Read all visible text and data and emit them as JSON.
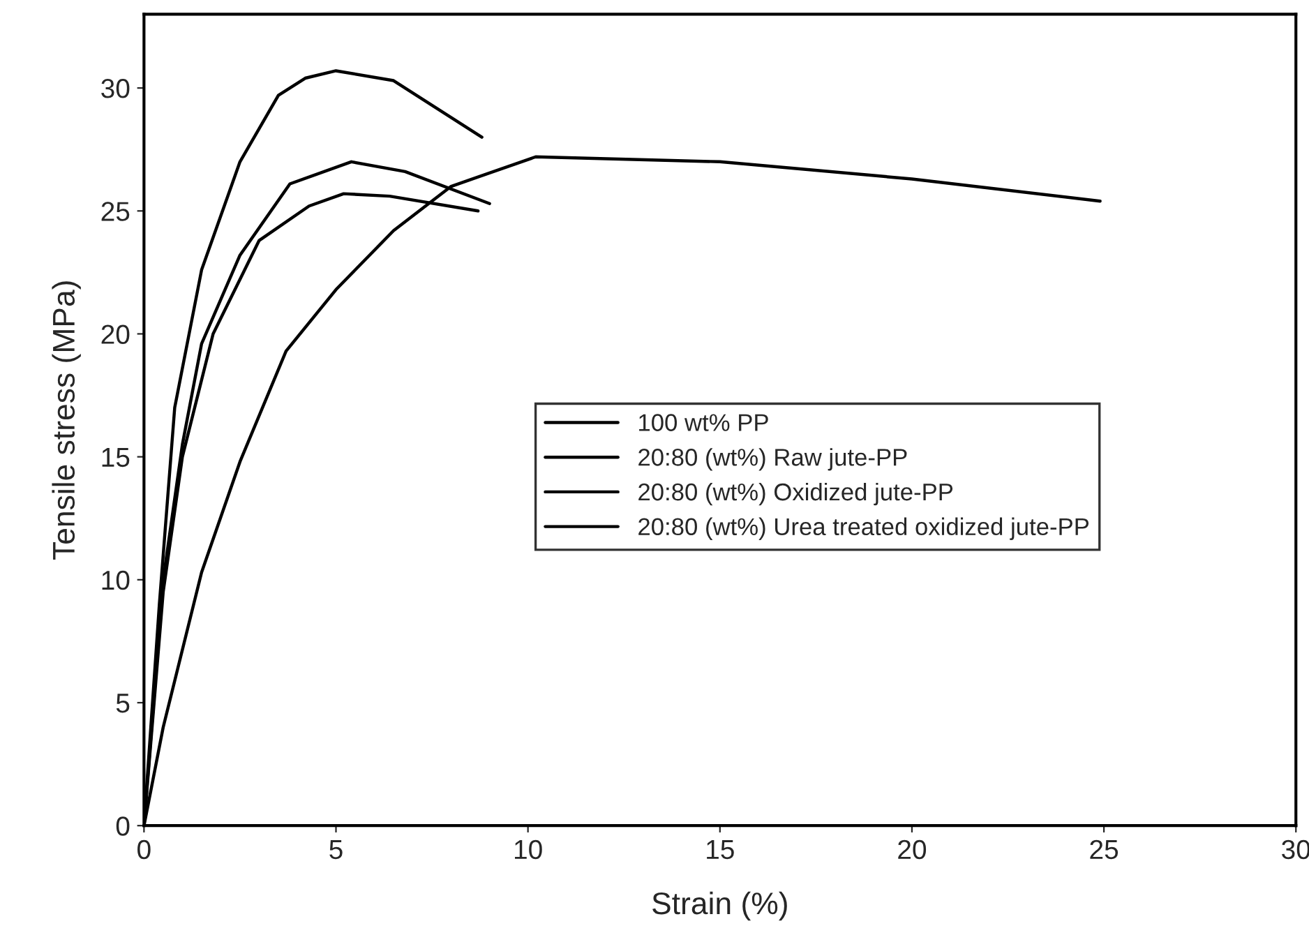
{
  "chart_data": {
    "type": "line",
    "xlabel": "Strain (%)",
    "ylabel": "Tensile stress (MPa)",
    "xlim": [
      0,
      30
    ],
    "ylim": [
      0,
      33
    ],
    "xticks": [
      0,
      5,
      10,
      15,
      20,
      25,
      30
    ],
    "yticks": [
      0,
      5,
      10,
      15,
      20,
      25,
      30
    ],
    "grid": false,
    "legend": "right",
    "marker": "none",
    "line_style": "solid",
    "series": [
      {
        "name": "100 wt% PP",
        "color": "#000000",
        "x": [
          0,
          0.5,
          1.5,
          2.5,
          3.7,
          5,
          6.5,
          8,
          10.2,
          15,
          20,
          24.9
        ],
        "values": [
          0,
          4,
          10.3,
          14.8,
          19.3,
          21.8,
          24.2,
          26.0,
          27.2,
          27.0,
          26.3,
          25.4
        ]
      },
      {
        "name": "20:80 (wt%) Raw jute-PP",
        "color": "#000000",
        "x": [
          0,
          0.5,
          1,
          1.8,
          3,
          4.3,
          5.2,
          6.4,
          8.7
        ],
        "values": [
          0,
          9.5,
          15,
          20,
          23.8,
          25.2,
          25.7,
          25.6,
          25.0
        ]
      },
      {
        "name": "20:80 (wt%) Oxidized jute-PP",
        "color": "#000000",
        "x": [
          0,
          0.5,
          1,
          1.5,
          2.5,
          3.8,
          5.4,
          6.8,
          9
        ],
        "values": [
          0,
          10,
          15.5,
          19.6,
          23.2,
          26.1,
          27.0,
          26.6,
          25.3
        ]
      },
      {
        "name": "20:80 (wt%) Urea treated oxidized jute-PP",
        "color": "#000000",
        "x": [
          0,
          0.4,
          0.8,
          1.5,
          2.5,
          3.5,
          4.2,
          5,
          6.5,
          8.8
        ],
        "values": [
          0,
          9,
          17,
          22.6,
          27,
          29.7,
          30.4,
          30.7,
          30.3,
          28.0
        ]
      }
    ]
  }
}
